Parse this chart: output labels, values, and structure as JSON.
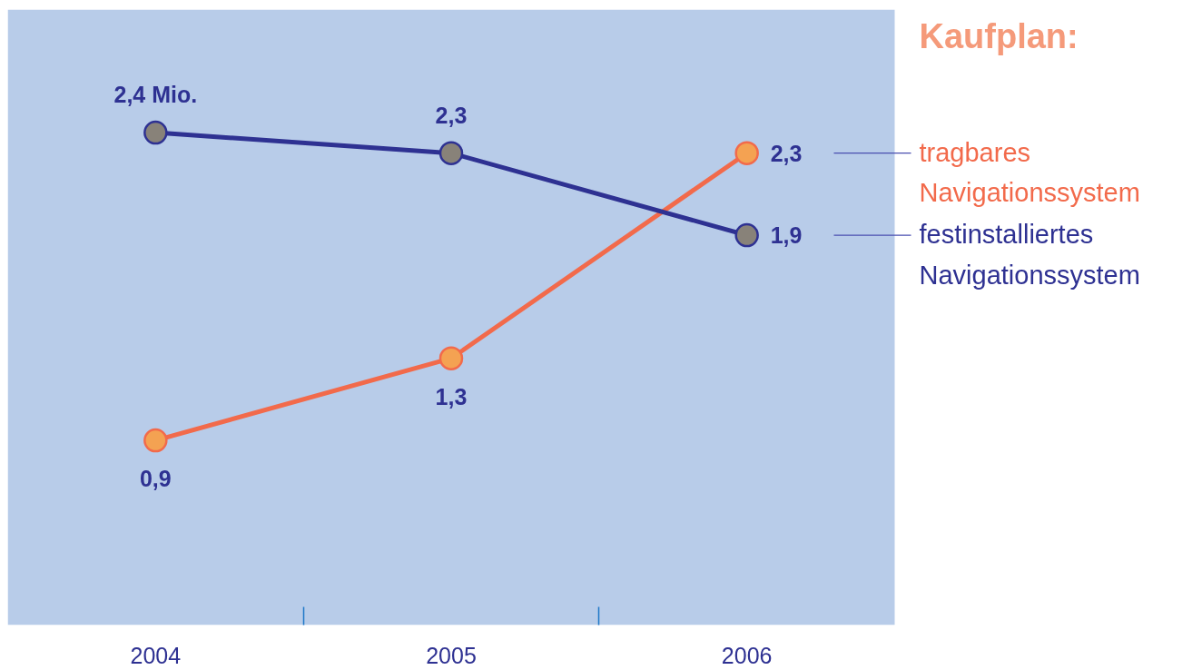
{
  "chart_data": {
    "type": "line",
    "title": "Kaufplan:",
    "categories": [
      "2004",
      "2005",
      "2006"
    ],
    "series": [
      {
        "name": "tragbares Navigationssystem",
        "color": "#f26a4b",
        "values": [
          0.9,
          1.3,
          2.3
        ],
        "value_labels": [
          "0,9",
          "1,3",
          "2,3"
        ]
      },
      {
        "name": "festinstalliertes Navigationssystem",
        "color": "#2e3192",
        "values": [
          2.4,
          2.3,
          1.9
        ],
        "value_labels": [
          "2,4 Mio.",
          "2,3",
          "1,9"
        ]
      }
    ],
    "ylim": [
      0,
      3
    ],
    "tick_labels": "x",
    "marker": "circle",
    "line_style": "solid"
  }
}
